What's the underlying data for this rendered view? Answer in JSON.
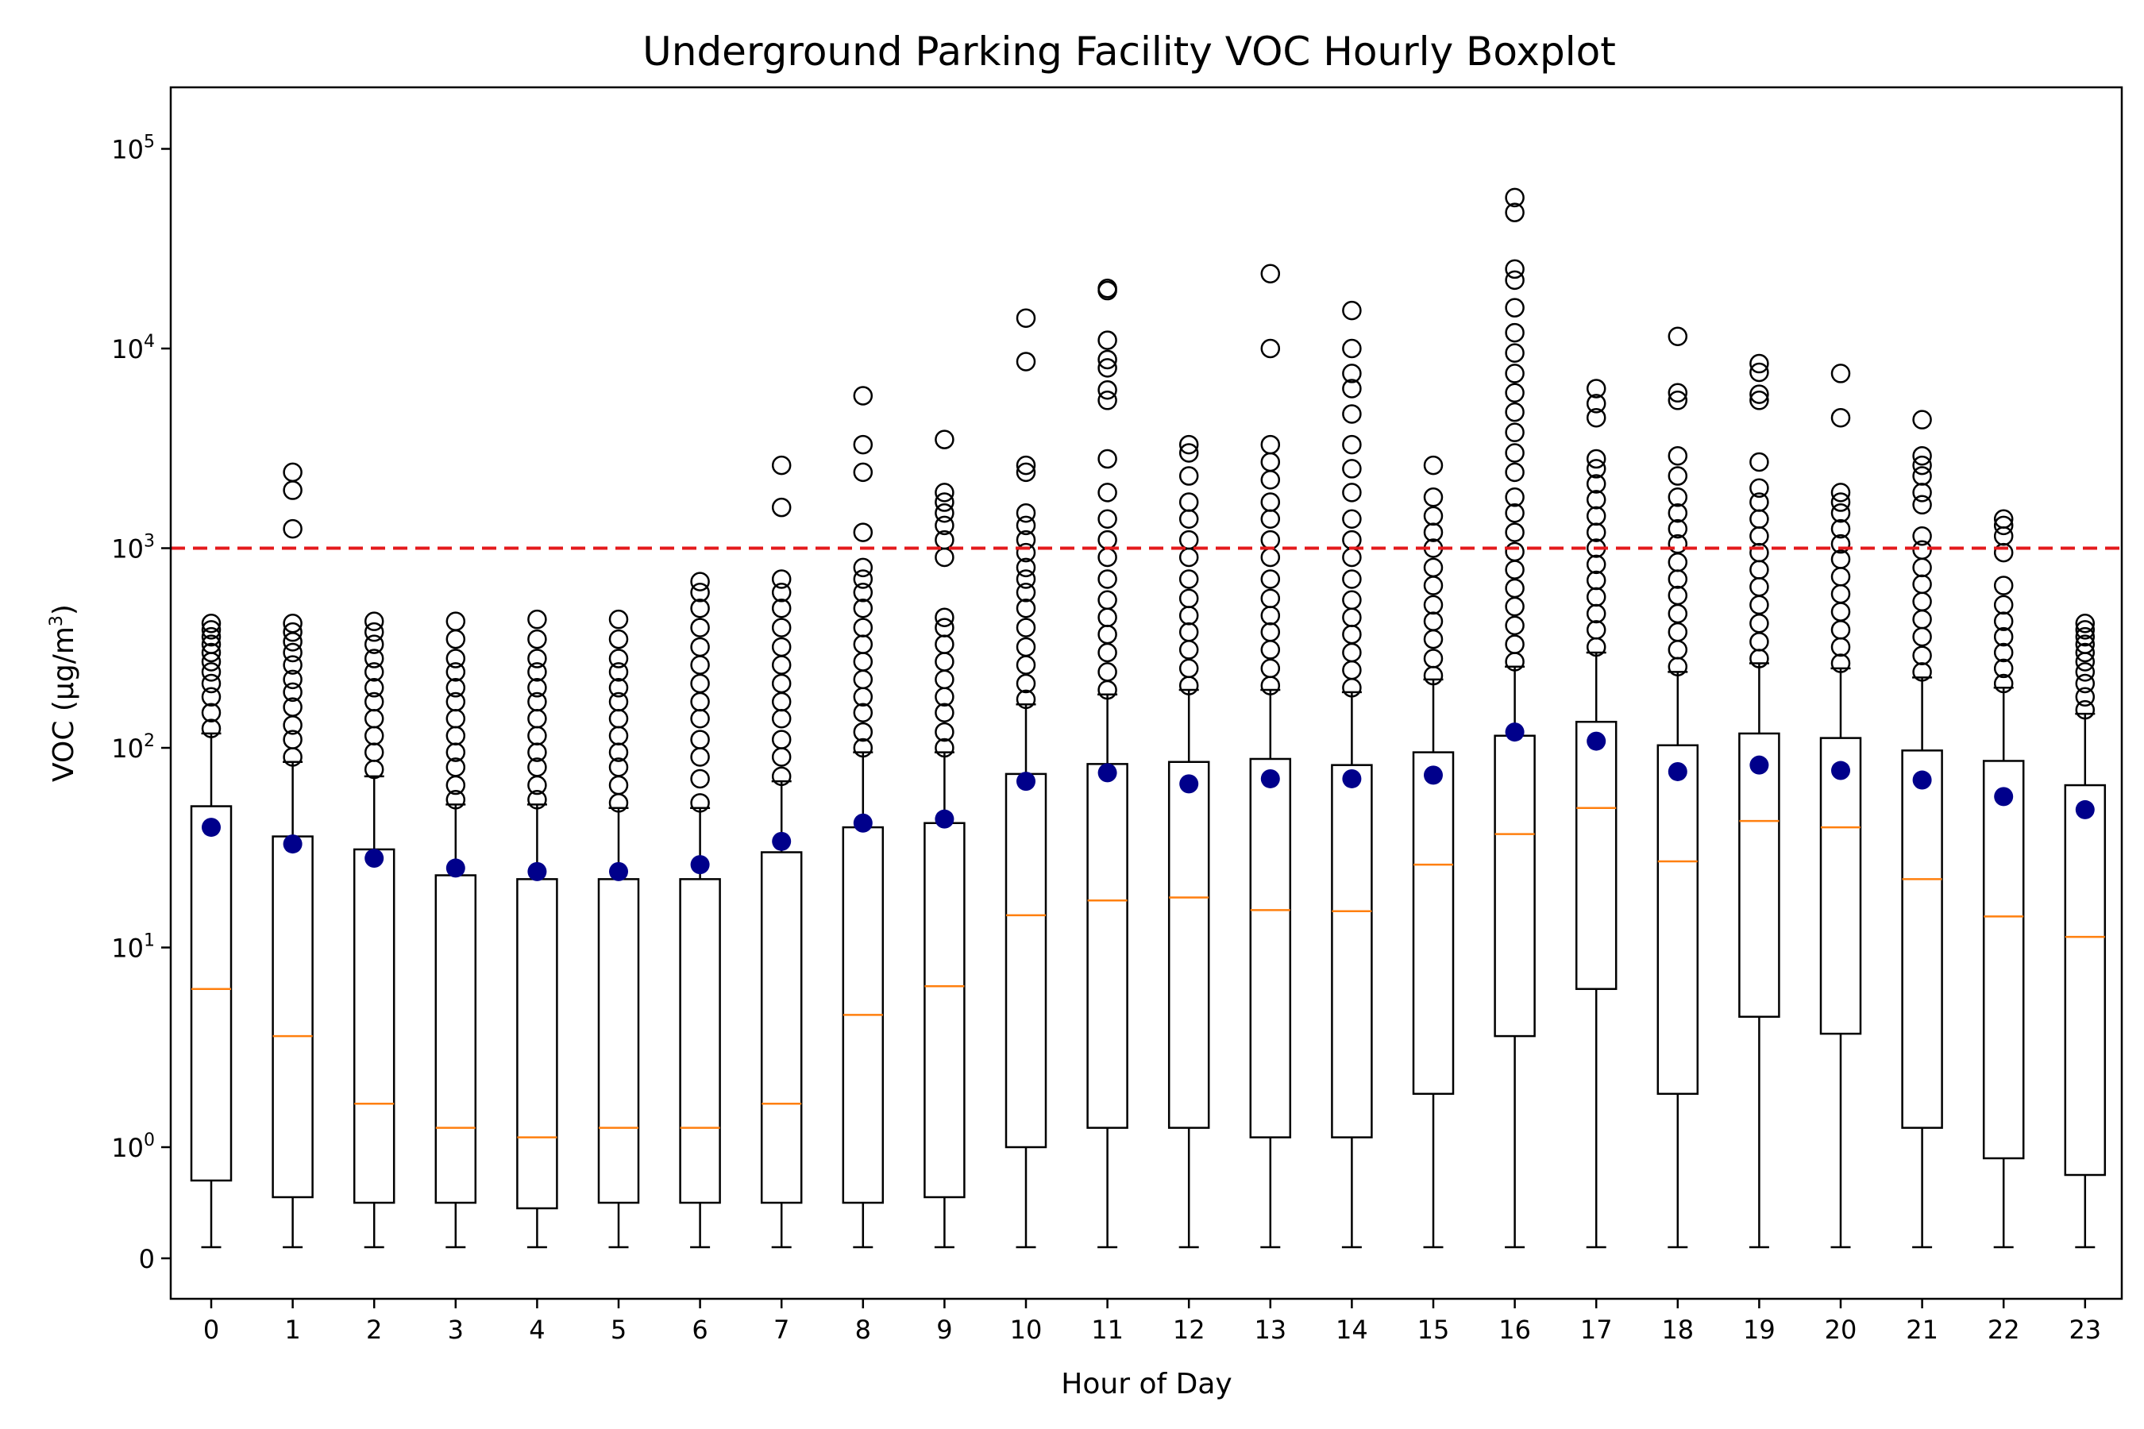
{
  "chart_data": {
    "type": "box",
    "title": "Underground Parking Facility VOC Hourly Boxplot",
    "xlabel": "Hour of Day",
    "ylabel_main": "VOC (μg/m",
    "ylabel_sup": "3",
    "ylabel_close": ")",
    "yscale": "symlog",
    "ylim": [
      -0.25,
      100000
    ],
    "yticks": [
      {
        "base": "0",
        "exp": ""
      },
      {
        "base": "10",
        "exp": "0"
      },
      {
        "base": "10",
        "exp": "1"
      },
      {
        "base": "10",
        "exp": "2"
      },
      {
        "base": "10",
        "exp": "3"
      },
      {
        "base": "10",
        "exp": "4"
      },
      {
        "base": "10",
        "exp": "5"
      }
    ],
    "reference_line": {
      "value": 1000,
      "color": "#e41a1c",
      "style": "dashed"
    },
    "colors": {
      "median": "#ff7f0e",
      "mean": "#00008b",
      "box": "#000000",
      "flier": "#000000"
    },
    "categories": [
      "0",
      "1",
      "2",
      "3",
      "4",
      "5",
      "6",
      "7",
      "8",
      "9",
      "10",
      "11",
      "12",
      "13",
      "14",
      "15",
      "16",
      "17",
      "18",
      "19",
      "20",
      "21",
      "22",
      "23"
    ],
    "boxes": [
      {
        "whislo": 0.1,
        "q1": 0.7,
        "med": 6.2,
        "q3": 51,
        "whishi": 118,
        "mean": 40,
        "fliers": [
          125,
          150,
          180,
          210,
          240,
          270,
          300,
          330,
          360,
          390,
          420
        ]
      },
      {
        "whislo": 0.1,
        "q1": 0.55,
        "med": 3.6,
        "q3": 36,
        "whishi": 85,
        "mean": 33,
        "fliers": [
          90,
          110,
          130,
          160,
          190,
          220,
          260,
          300,
          340,
          380,
          420,
          1250,
          1950,
          2400
        ]
      },
      {
        "whislo": 0.1,
        "q1": 0.5,
        "med": 1.65,
        "q3": 31,
        "whishi": 72,
        "mean": 28,
        "fliers": [
          78,
          95,
          115,
          140,
          170,
          200,
          240,
          280,
          330,
          380,
          430
        ]
      },
      {
        "whislo": 0.1,
        "q1": 0.5,
        "med": 1.25,
        "q3": 23,
        "whishi": 52,
        "mean": 25,
        "fliers": [
          55,
          65,
          80,
          95,
          115,
          140,
          170,
          200,
          240,
          280,
          350,
          430
        ]
      },
      {
        "whislo": 0.1,
        "q1": 0.45,
        "med": 1.12,
        "q3": 22,
        "whishi": 52,
        "mean": 24,
        "fliers": [
          55,
          65,
          80,
          95,
          115,
          140,
          170,
          200,
          240,
          280,
          350,
          440
        ]
      },
      {
        "whislo": 0.1,
        "q1": 0.5,
        "med": 1.25,
        "q3": 22,
        "whishi": 50,
        "mean": 24,
        "fliers": [
          53,
          65,
          80,
          95,
          115,
          140,
          170,
          200,
          240,
          280,
          350,
          440
        ]
      },
      {
        "whislo": 0.1,
        "q1": 0.5,
        "med": 1.25,
        "q3": 22,
        "whishi": 50,
        "mean": 26,
        "fliers": [
          53,
          70,
          90,
          110,
          140,
          170,
          210,
          260,
          320,
          400,
          500,
          600,
          680
        ]
      },
      {
        "whislo": 0.1,
        "q1": 0.5,
        "med": 1.65,
        "q3": 30,
        "whishi": 68,
        "mean": 34,
        "fliers": [
          72,
          90,
          110,
          140,
          170,
          210,
          260,
          320,
          400,
          500,
          600,
          700,
          1600,
          2600
        ]
      },
      {
        "whislo": 0.1,
        "q1": 0.5,
        "med": 4.6,
        "q3": 40,
        "whishi": 95,
        "mean": 42,
        "fliers": [
          100,
          120,
          150,
          180,
          220,
          270,
          330,
          400,
          500,
          600,
          700,
          800,
          1200,
          2400,
          3300,
          5800
        ]
      },
      {
        "whislo": 0.1,
        "q1": 0.55,
        "med": 6.4,
        "q3": 42,
        "whishi": 95,
        "mean": 44,
        "fliers": [
          100,
          120,
          150,
          180,
          220,
          270,
          330,
          400,
          450,
          900,
          1100,
          1300,
          1500,
          1700,
          1900,
          3500
        ]
      },
      {
        "whislo": 0.1,
        "q1": 1.0,
        "med": 14.5,
        "q3": 74,
        "whishi": 165,
        "mean": 68,
        "fliers": [
          175,
          210,
          260,
          320,
          400,
          500,
          600,
          700,
          800,
          950,
          1100,
          1300,
          1500,
          2400,
          2600,
          8600,
          14200
        ]
      },
      {
        "whislo": 0.1,
        "q1": 1.25,
        "med": 17.2,
        "q3": 83,
        "whishi": 185,
        "mean": 75,
        "fliers": [
          195,
          240,
          300,
          370,
          450,
          550,
          700,
          900,
          1100,
          1400,
          1900,
          2800,
          5500,
          6200,
          8000,
          8800,
          11000,
          19500,
          20000
        ]
      },
      {
        "whislo": 0.1,
        "q1": 1.25,
        "med": 17.8,
        "q3": 85,
        "whishi": 195,
        "mean": 66,
        "fliers": [
          205,
          250,
          310,
          380,
          460,
          560,
          700,
          900,
          1100,
          1400,
          1700,
          2300,
          3000,
          3300
        ]
      },
      {
        "whislo": 0.1,
        "q1": 1.12,
        "med": 15.4,
        "q3": 88,
        "whishi": 195,
        "mean": 70,
        "fliers": [
          205,
          250,
          310,
          380,
          460,
          560,
          700,
          900,
          1100,
          1400,
          1700,
          2200,
          2700,
          3300,
          10000,
          23700
        ]
      },
      {
        "whislo": 0.1,
        "q1": 1.12,
        "med": 15.2,
        "q3": 82,
        "whishi": 190,
        "mean": 70,
        "fliers": [
          200,
          245,
          300,
          370,
          450,
          550,
          700,
          900,
          1100,
          1400,
          1900,
          2500,
          3300,
          4700,
          6300,
          7500,
          10000,
          15500
        ]
      },
      {
        "whislo": 0.1,
        "q1": 1.85,
        "med": 26,
        "q3": 95,
        "whishi": 220,
        "mean": 73,
        "fliers": [
          230,
          280,
          350,
          430,
          520,
          650,
          800,
          1000,
          1200,
          1450,
          1800,
          2600
        ]
      },
      {
        "whislo": 0.1,
        "q1": 3.6,
        "med": 37,
        "q3": 115,
        "whishi": 255,
        "mean": 120,
        "fliers": [
          270,
          330,
          410,
          510,
          630,
          780,
          960,
          1200,
          1500,
          1800,
          2400,
          3000,
          3800,
          4800,
          6000,
          7500,
          9500,
          12000,
          16000,
          22000,
          25000,
          48000,
          57000
        ]
      },
      {
        "whislo": 0.1,
        "q1": 6.2,
        "med": 50,
        "q3": 135,
        "whishi": 300,
        "mean": 108,
        "fliers": [
          320,
          390,
          470,
          570,
          690,
          830,
          1000,
          1200,
          1450,
          1750,
          2100,
          2500,
          2800,
          4500,
          5300,
          6300
        ]
      },
      {
        "whislo": 0.1,
        "q1": 1.85,
        "med": 27,
        "q3": 103,
        "whishi": 240,
        "mean": 76,
        "fliers": [
          255,
          310,
          380,
          470,
          580,
          700,
          850,
          1050,
          1250,
          1500,
          1800,
          2300,
          2900,
          5500,
          6000,
          11500
        ]
      },
      {
        "whislo": 0.1,
        "q1": 4.5,
        "med": 43,
        "q3": 118,
        "whishi": 265,
        "mean": 82,
        "fliers": [
          280,
          340,
          420,
          520,
          640,
          780,
          950,
          1150,
          1400,
          1700,
          2000,
          2700,
          5500,
          5900,
          7600,
          8400
        ]
      },
      {
        "whislo": 0.1,
        "q1": 3.7,
        "med": 40,
        "q3": 112,
        "whishi": 250,
        "mean": 77,
        "fliers": [
          265,
          320,
          390,
          480,
          590,
          720,
          880,
          1050,
          1250,
          1500,
          1700,
          1900,
          4500,
          7500
        ]
      },
      {
        "whislo": 0.1,
        "q1": 1.25,
        "med": 22,
        "q3": 97,
        "whishi": 225,
        "mean": 69,
        "fliers": [
          240,
          290,
          360,
          440,
          540,
          660,
          800,
          980,
          1150,
          1650,
          1900,
          2300,
          2600,
          2900,
          4400
        ]
      },
      {
        "whislo": 0.1,
        "q1": 0.9,
        "med": 14.3,
        "q3": 86,
        "whishi": 200,
        "mean": 57,
        "fliers": [
          210,
          250,
          300,
          360,
          430,
          520,
          650,
          950,
          1150,
          1300,
          1400
        ]
      },
      {
        "whislo": 0.1,
        "q1": 0.75,
        "med": 11.3,
        "q3": 65,
        "whishi": 148,
        "mean": 49,
        "fliers": [
          155,
          180,
          210,
          240,
          270,
          300,
          330,
          360,
          390,
          420
        ]
      }
    ]
  }
}
